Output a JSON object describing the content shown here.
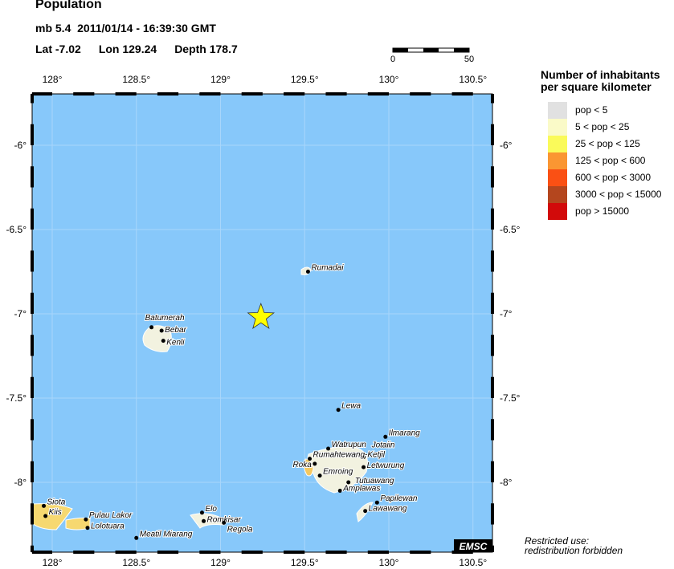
{
  "header": {
    "title": "Population",
    "magnitude": "mb 5.4",
    "datetime": "2011/01/14 - 16:39:30 GMT",
    "lat": "Lat -7.02",
    "lon": "Lon 129.24",
    "depth": "Depth 178.7"
  },
  "scale_bar": {
    "start": "0",
    "end": "50"
  },
  "map": {
    "ocean_color": "#87c8fa",
    "lon_ticks": [
      "128°",
      "128.5°",
      "129°",
      "129.5°",
      "130°",
      "130.5°"
    ],
    "lat_ticks": [
      "-6°",
      "-6.5°",
      "-7°",
      "-7.5°",
      "-8°"
    ],
    "epicenter": {
      "lat": -7.02,
      "lon": 129.24,
      "icon": "star-icon",
      "color": "#ffff00"
    },
    "places": [
      {
        "name": "Rumadai",
        "lon": 129.52,
        "lat": -6.75
      },
      {
        "name": "Batumerah",
        "lon": 128.59,
        "lat": -7.08
      },
      {
        "name": "Bebar",
        "lon": 128.65,
        "lat": -7.1
      },
      {
        "name": "Kenli",
        "lon": 128.66,
        "lat": -7.16
      },
      {
        "name": "Lewa",
        "lon": 129.7,
        "lat": -7.57
      },
      {
        "name": "Ilmarang",
        "lon": 129.98,
        "lat": -7.73
      },
      {
        "name": "Watrupun",
        "lon": 129.64,
        "lat": -7.8
      },
      {
        "name": "Jotaiin",
        "lon": 129.85,
        "lat": -7.85
      },
      {
        "name": "Rumahtewang-Ketjil",
        "lon": 129.53,
        "lat": -7.86
      },
      {
        "name": "Roka",
        "lon": 129.56,
        "lat": -7.89
      },
      {
        "name": "Letwurung",
        "lon": 129.85,
        "lat": -7.91
      },
      {
        "name": "Emroing",
        "lon": 129.59,
        "lat": -7.96
      },
      {
        "name": "Tutuawang",
        "lon": 129.76,
        "lat": -8.0
      },
      {
        "name": "Amplawas",
        "lon": 129.71,
        "lat": -8.05
      },
      {
        "name": "Papilewan",
        "lon": 129.93,
        "lat": -8.12
      },
      {
        "name": "Lawawang",
        "lon": 129.86,
        "lat": -8.17
      },
      {
        "name": "Siota",
        "lon": 127.95,
        "lat": -8.14
      },
      {
        "name": "Kiis",
        "lon": 127.96,
        "lat": -8.2
      },
      {
        "name": "Pulau Lakor",
        "lon": 128.2,
        "lat": -8.22
      },
      {
        "name": "Lolotuara",
        "lon": 128.21,
        "lat": -8.27
      },
      {
        "name": "Elo",
        "lon": 128.89,
        "lat": -8.18
      },
      {
        "name": "Romkisar",
        "lon": 128.9,
        "lat": -8.23
      },
      {
        "name": "Regola",
        "lon": 129.02,
        "lat": -8.24
      },
      {
        "name": "Meatil Miarang",
        "lon": 128.5,
        "lat": -8.33
      }
    ],
    "logo": "EMSC"
  },
  "legend": {
    "title_line1": "Number of inhabitants",
    "title_line2": "per square kilometer",
    "items": [
      {
        "label": "pop < 5",
        "color": "#e1e1e1"
      },
      {
        "label": "5 < pop < 25",
        "color": "#fafac8"
      },
      {
        "label": "25 < pop < 125",
        "color": "#fafa5a"
      },
      {
        "label": "125 < pop < 600",
        "color": "#fa9632"
      },
      {
        "label": "600 < pop < 3000",
        "color": "#fa5014"
      },
      {
        "label": "3000 < pop < 15000",
        "color": "#b4461e"
      },
      {
        "label": "pop > 15000",
        "color": "#d20a0a"
      }
    ]
  },
  "footer": {
    "line1": "Restricted use:",
    "line2": "redistribution forbidden"
  }
}
